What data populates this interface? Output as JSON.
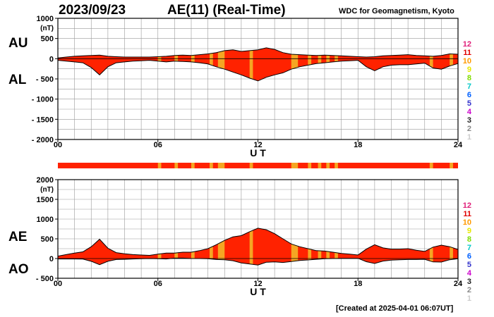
{
  "header": {
    "date": "2023/09/23",
    "title": "AE(11) (Real-Time)",
    "source": "WDC for Geomagnetism, Kyoto"
  },
  "footer": {
    "created": "[Created at 2025-04-01 06:07UT]"
  },
  "colors": {
    "fill": "#ff2200",
    "highlight": "#f5a623",
    "line": "#000000",
    "grid": "#999999",
    "station_count_colors": {
      "12": "#e0207a",
      "11": "#e00000",
      "10": "#ff9900",
      "9": "#e8e800",
      "8": "#7fdc00",
      "7": "#00c8c8",
      "6": "#0060ff",
      "5": "#3333cc",
      "4": "#cc00cc",
      "3": "#222222",
      "2": "#888888",
      "1": "#cccccc"
    }
  },
  "chart_data": [
    {
      "type": "area",
      "panel": "AU/AL",
      "series": [
        {
          "name": "AU",
          "x": [
            0,
            0.5,
            1,
            1.5,
            2,
            2.5,
            3,
            3.5,
            4,
            4.5,
            5,
            5.5,
            6,
            6.5,
            7,
            7.5,
            8,
            8.5,
            9,
            9.5,
            10,
            10.5,
            11,
            11.5,
            12,
            12.5,
            13,
            13.5,
            14,
            14.5,
            15,
            15.5,
            16,
            16.5,
            17,
            17.5,
            18,
            18.5,
            19,
            19.5,
            20,
            20.5,
            21,
            21.5,
            22,
            22.5,
            23,
            23.5,
            24
          ],
          "values": [
            20,
            40,
            60,
            70,
            80,
            90,
            60,
            50,
            40,
            40,
            40,
            40,
            50,
            60,
            80,
            90,
            80,
            100,
            120,
            150,
            200,
            220,
            180,
            200,
            220,
            270,
            230,
            150,
            110,
            100,
            90,
            80,
            90,
            80,
            70,
            60,
            50,
            40,
            50,
            70,
            80,
            90,
            100,
            80,
            70,
            60,
            80,
            120,
            110
          ]
        },
        {
          "name": "AL",
          "x": [
            0,
            0.5,
            1,
            1.5,
            2,
            2.5,
            3,
            3.5,
            4,
            4.5,
            5,
            5.5,
            6,
            6.5,
            7,
            7.5,
            8,
            8.5,
            9,
            9.5,
            10,
            10.5,
            11,
            11.5,
            12,
            12.5,
            13,
            13.5,
            14,
            14.5,
            15,
            15.5,
            16,
            16.5,
            17,
            17.5,
            18,
            18.5,
            19,
            19.5,
            20,
            20.5,
            21,
            21.5,
            22,
            22.5,
            23,
            23.5,
            24
          ],
          "values": [
            -40,
            -60,
            -80,
            -100,
            -220,
            -400,
            -200,
            -100,
            -80,
            -60,
            -50,
            -40,
            -60,
            -80,
            -60,
            -70,
            -80,
            -100,
            -130,
            -200,
            -260,
            -330,
            -400,
            -480,
            -550,
            -460,
            -400,
            -350,
            -260,
            -200,
            -160,
            -120,
            -100,
            -80,
            -60,
            -50,
            -40,
            -200,
            -300,
            -200,
            -160,
            -150,
            -150,
            -130,
            -110,
            -230,
            -260,
            -180,
            -120
          ]
        }
      ],
      "xticks": [
        0,
        6,
        12,
        18,
        24
      ],
      "xticklabels": [
        "00",
        "06",
        "12",
        "18",
        "24"
      ],
      "xlabel": "U T",
      "yticks": [
        1000,
        500,
        0,
        -500,
        -1000,
        -1500,
        -2000
      ],
      "yticklabels": [
        "1000",
        "500",
        "0",
        "- 500",
        "- 1000",
        "- 1500",
        "- 2000"
      ],
      "yunit": "(nT)",
      "ylim": [
        -2000,
        1000
      ],
      "xlim": [
        0,
        24
      ],
      "grid": true
    },
    {
      "type": "area",
      "panel": "AE/AO",
      "series": [
        {
          "name": "AE",
          "x": [
            0,
            0.5,
            1,
            1.5,
            2,
            2.5,
            3,
            3.5,
            4,
            4.5,
            5,
            5.5,
            6,
            6.5,
            7,
            7.5,
            8,
            8.5,
            9,
            9.5,
            10,
            10.5,
            11,
            11.5,
            12,
            12.5,
            13,
            13.5,
            14,
            14.5,
            15,
            15.5,
            16,
            16.5,
            17,
            17.5,
            18,
            18.5,
            19,
            19.5,
            20,
            20.5,
            21,
            21.5,
            22,
            22.5,
            23,
            23.5,
            24
          ],
          "values": [
            60,
            100,
            140,
            170,
            300,
            490,
            260,
            150,
            120,
            100,
            90,
            80,
            110,
            140,
            140,
            160,
            160,
            200,
            250,
            350,
            460,
            550,
            580,
            680,
            770,
            730,
            630,
            500,
            370,
            300,
            250,
            200,
            190,
            160,
            130,
            110,
            90,
            240,
            350,
            270,
            240,
            240,
            250,
            210,
            180,
            290,
            340,
            300,
            230
          ]
        },
        {
          "name": "AO",
          "x": [
            0,
            0.5,
            1,
            1.5,
            2,
            2.5,
            3,
            3.5,
            4,
            4.5,
            5,
            5.5,
            6,
            6.5,
            7,
            7.5,
            8,
            8.5,
            9,
            9.5,
            10,
            10.5,
            11,
            11.5,
            12,
            12.5,
            13,
            13.5,
            14,
            14.5,
            15,
            15.5,
            16,
            16.5,
            17,
            17.5,
            18,
            18.5,
            19,
            19.5,
            20,
            20.5,
            21,
            21.5,
            22,
            22.5,
            23,
            23.5,
            24
          ],
          "values": [
            -10,
            -10,
            -10,
            -15,
            -70,
            -155,
            -70,
            -25,
            -20,
            -10,
            -5,
            0,
            -5,
            -10,
            10,
            10,
            0,
            0,
            -5,
            -25,
            -30,
            -55,
            -110,
            -140,
            -165,
            -95,
            -85,
            -100,
            -75,
            -50,
            -35,
            -20,
            -5,
            0,
            5,
            5,
            5,
            -80,
            -125,
            -65,
            -40,
            -30,
            -25,
            -25,
            -20,
            -85,
            -90,
            -30,
            -5
          ]
        }
      ],
      "xticks": [
        0,
        6,
        12,
        18,
        24
      ],
      "xticklabels": [
        "00",
        "06",
        "12",
        "18",
        "24"
      ],
      "xlabel": "U T",
      "yticks": [
        2000,
        1500,
        1000,
        500,
        0,
        -500
      ],
      "yticklabels": [
        "2000",
        "1500",
        "1000",
        "500",
        "0",
        "- 500"
      ],
      "yunit": "(nT)",
      "ylim": [
        -500,
        2000
      ],
      "xlim": [
        0,
        24
      ],
      "grid": true
    }
  ],
  "station_bar": {
    "highlight_intervals_ut": [
      [
        6.0,
        6.2
      ],
      [
        7.0,
        7.2
      ],
      [
        8.0,
        8.2
      ],
      [
        9.1,
        9.3
      ],
      [
        9.6,
        10.0
      ],
      [
        11.5,
        11.7
      ],
      [
        14.0,
        14.4
      ],
      [
        15.0,
        15.2
      ],
      [
        15.6,
        15.8
      ],
      [
        16.1,
        16.3
      ],
      [
        16.6,
        16.8
      ],
      [
        22.3,
        22.5
      ],
      [
        23.5,
        23.7
      ]
    ]
  },
  "legend": {
    "counts": [
      "12",
      "11",
      "10",
      "9",
      "8",
      "7",
      "6",
      "5",
      "4",
      "3",
      "2",
      "1"
    ]
  },
  "panel_labels": {
    "au": "AU",
    "al": "AL",
    "ae": "AE",
    "ao": "AO"
  }
}
